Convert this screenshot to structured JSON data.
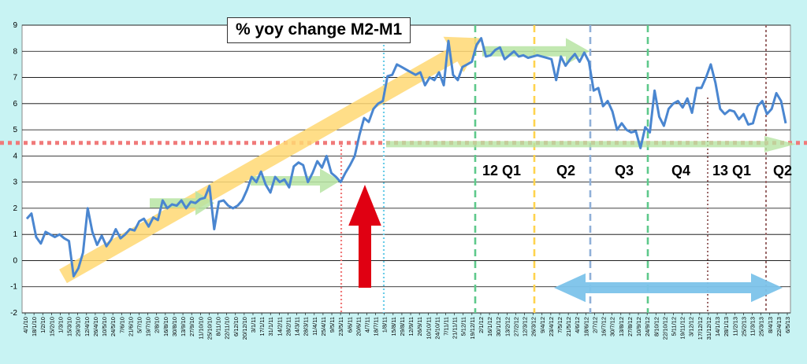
{
  "colors": {
    "background": "#c8f3f3",
    "plot_area": "#ffffff",
    "line": "#4a86d0",
    "trend_arrow": "#ffd873",
    "flat_arrow": "#b7e4a3",
    "red_dotted": "#f07a7a",
    "red_arrow": "#e00012",
    "blue_arrow": "#7cc3ea",
    "sky_dotted": "#6ccde8",
    "green_dashed": "#5ec98b",
    "yellow_dashed": "#ffd34d",
    "steel_dashed": "#8fb0d8",
    "brown_dotted": "#9b6a6a"
  },
  "chart_data": {
    "type": "line",
    "title": "% yoy change M2-M1",
    "ylim": [
      -2,
      9
    ],
    "yticks": [
      -2,
      -1,
      0,
      1,
      2,
      3,
      4,
      5,
      6,
      7,
      8,
      9
    ],
    "grid": true,
    "xlabels": [
      "4/1/10",
      "18/1/10",
      "1/2/10",
      "15/2/10",
      "1/3/10",
      "15/3/10",
      "29/3/10",
      "12/4/10",
      "26/4/10",
      "10/5/10",
      "24/5/10",
      "7/6/10",
      "21/6/10",
      "5/7/10",
      "19/7/10",
      "2/8/10",
      "16/8/10",
      "30/8/10",
      "13/9/10",
      "27/9/10",
      "11/10/10",
      "25/10/10",
      "8/11/10",
      "22/11/10",
      "6/12/10",
      "20/12/10",
      "3/1/11",
      "17/1/11",
      "31/1/11",
      "14/2/11",
      "28/2/11",
      "14/3/11",
      "28/3/11",
      "11/4/11",
      "25/4/11",
      "9/5/11",
      "23/5/11",
      "6/6/11",
      "20/6/11",
      "4/7/11",
      "18/7/11",
      "1/8/11",
      "15/8/11",
      "29/8/11",
      "12/9/11",
      "26/9/11",
      "10/10/11",
      "24/10/11",
      "7/11/11",
      "21/11/11",
      "5/12/11",
      "19/12/11",
      "2/1/12",
      "16/1/12",
      "30/1/12",
      "13/2/12",
      "27/2/12",
      "12/3/12",
      "26/3/12",
      "9/4/12",
      "23/4/12",
      "7/5/12",
      "21/5/12",
      "4/6/12",
      "18/6/12",
      "2/7/12",
      "16/7/12",
      "30/7/12",
      "13/8/12",
      "27/8/12",
      "10/9/12",
      "24/9/12",
      "8/10/12",
      "22/10/12",
      "5/11/12",
      "19/11/12",
      "3/12/12",
      "17/12/12",
      "31/12/12",
      "14/1/13",
      "28/1/13",
      "11/2/13",
      "25/2/13",
      "11/3/13",
      "25/3/13",
      "8/4/13",
      "22/4/13",
      "6/5/13"
    ],
    "series": [
      {
        "values": [
          1.6,
          1.8,
          0.9,
          0.65,
          1.1,
          1.0,
          0.9,
          1.0,
          0.85,
          0.75,
          -0.6,
          -0.3,
          0.3,
          2.0,
          1.1,
          0.6,
          0.95,
          0.55,
          0.8,
          1.2,
          0.85,
          1.0,
          1.2,
          1.15,
          1.5,
          1.6,
          1.3,
          1.65,
          1.55,
          2.3,
          2.0,
          2.15,
          2.1,
          2.3,
          2.0,
          2.25,
          2.2,
          2.35,
          2.4,
          2.85,
          1.2,
          2.25,
          2.3,
          2.1,
          2.0,
          2.1,
          2.3,
          2.7,
          3.2,
          3.0,
          3.4,
          2.9,
          2.6,
          3.2,
          3.0,
          3.1,
          2.8,
          3.6,
          3.75,
          3.65,
          3.0,
          3.35,
          3.8,
          3.55,
          4.0,
          3.35,
          3.2,
          3.0,
          3.35,
          3.65,
          4.0,
          4.8,
          5.45,
          5.3,
          5.8,
          6.0,
          6.1,
          7.05,
          7.1,
          7.5,
          7.4,
          7.3,
          7.2,
          7.1,
          7.2,
          6.7,
          7.0,
          6.9,
          7.2,
          6.7,
          8.4,
          7.1,
          6.9,
          7.4,
          7.5,
          7.6,
          8.25,
          8.5,
          7.8,
          7.85,
          8.05,
          8.15,
          7.7,
          7.85,
          8.0,
          7.8,
          7.85,
          7.75,
          7.8,
          7.85,
          7.8,
          7.75,
          7.7,
          6.9,
          7.8,
          7.45,
          7.7,
          7.9,
          7.6,
          7.95,
          7.6,
          6.5,
          6.6,
          5.9,
          6.1,
          5.7,
          5.0,
          5.25,
          5.0,
          4.9,
          4.95,
          4.3,
          5.1,
          4.9,
          6.5,
          5.5,
          5.15,
          5.8,
          6.0,
          6.1,
          5.85,
          6.2,
          5.65,
          6.6,
          6.6,
          7.0,
          7.5,
          6.8,
          5.8,
          5.6,
          5.75,
          5.7,
          5.4,
          5.6,
          5.2,
          5.25,
          5.9,
          6.1,
          5.6,
          5.8,
          6.4,
          6.1,
          5.25
        ]
      }
    ],
    "annotations": {
      "quarter_labels": [
        "12 Q1",
        "Q2",
        "Q3",
        "Q4",
        "13 Q1",
        "Q2"
      ]
    }
  }
}
